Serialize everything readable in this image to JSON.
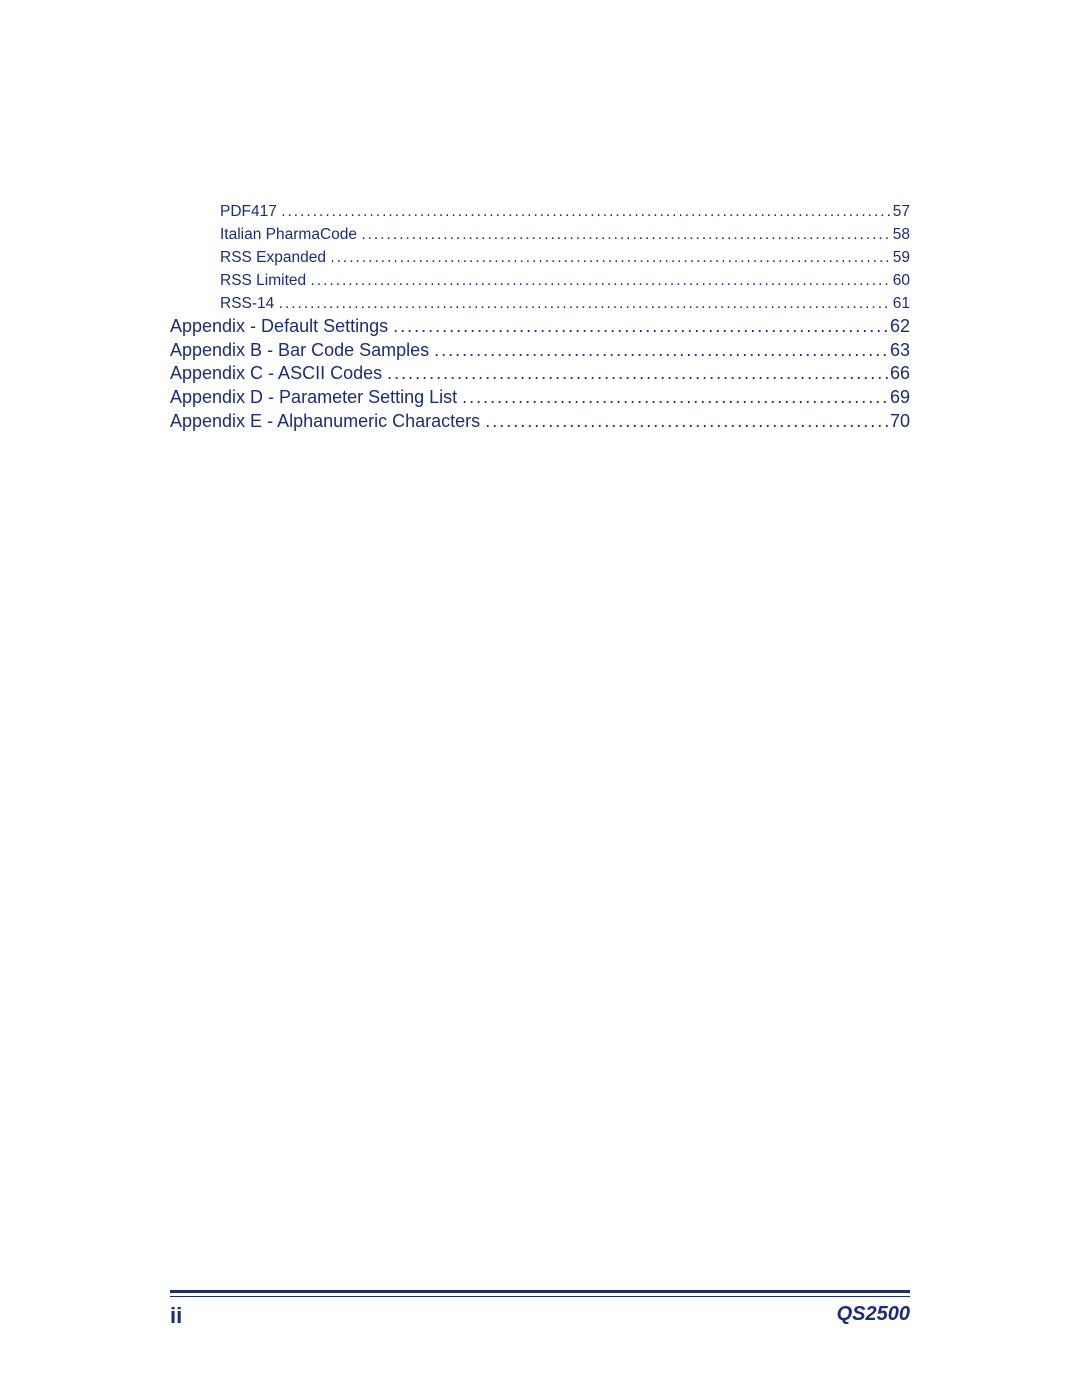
{
  "colors": {
    "text": "#1a2d7a",
    "background": "#ffffff",
    "rule": "#1a2d7a"
  },
  "typography": {
    "family": "Verdana, Geneva, sans-serif",
    "sub_fontsize_pt": 11,
    "main_fontsize_pt": 13,
    "footer_pagenum_pt": 16,
    "footer_doc_pt": 15
  },
  "toc": [
    {
      "level": "sub",
      "label": "PDF417",
      "page": "57"
    },
    {
      "level": "sub",
      "label": "Italian PharmaCode",
      "page": "58"
    },
    {
      "level": "sub",
      "label": "RSS Expanded",
      "page": "59"
    },
    {
      "level": "sub",
      "label": "RSS Limited",
      "page": "60"
    },
    {
      "level": "sub",
      "label": "RSS-14",
      "page": "61"
    },
    {
      "level": "main",
      "label": "Appendix - Default Settings",
      "page": "62"
    },
    {
      "level": "main",
      "label": "Appendix B - Bar Code Samples",
      "page": "63"
    },
    {
      "level": "main",
      "label": "Appendix C - ASCII Codes",
      "page": "66"
    },
    {
      "level": "main",
      "label": "Appendix D - Parameter Setting List",
      "page": "69"
    },
    {
      "level": "main",
      "label": "Appendix E - Alphanumeric Characters",
      "page": "70"
    }
  ],
  "footer": {
    "pagenum": "ii",
    "doc": "QS2500"
  }
}
